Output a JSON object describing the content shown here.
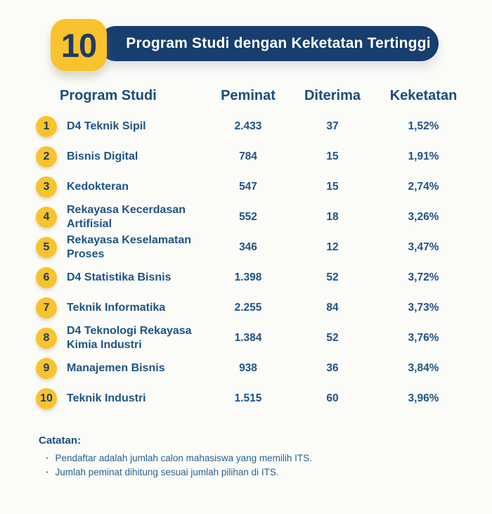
{
  "header": {
    "count": "10",
    "title": "Program Studi dengan Keketatan Tertinggi"
  },
  "table": {
    "columns": [
      "Program Studi",
      "Peminat",
      "Diterima",
      "Keketatan"
    ],
    "rows": [
      {
        "rank": "1",
        "program": "D4 Teknik Sipil",
        "peminat": "2.433",
        "diterima": "37",
        "keketatan": "1,52%"
      },
      {
        "rank": "2",
        "program": "Bisnis Digital",
        "peminat": "784",
        "diterima": "15",
        "keketatan": "1,91%"
      },
      {
        "rank": "3",
        "program": "Kedokteran",
        "peminat": "547",
        "diterima": "15",
        "keketatan": "2,74%"
      },
      {
        "rank": "4",
        "program": "Rekayasa Kecerdasan Artifisial",
        "peminat": "552",
        "diterima": "18",
        "keketatan": "3,26%"
      },
      {
        "rank": "5",
        "program": "Rekayasa Keselamatan Proses",
        "peminat": "346",
        "diterima": "12",
        "keketatan": "3,47%"
      },
      {
        "rank": "6",
        "program": "D4 Statistika Bisnis",
        "peminat": "1.398",
        "diterima": "52",
        "keketatan": "3,72%"
      },
      {
        "rank": "7",
        "program": "Teknik Informatika",
        "peminat": "2.255",
        "diterima": "84",
        "keketatan": "3,73%"
      },
      {
        "rank": "8",
        "program": "D4 Teknologi Rekayasa Kimia Industri",
        "peminat": "1.384",
        "diterima": "52",
        "keketatan": "3,76%"
      },
      {
        "rank": "9",
        "program": "Manajemen Bisnis",
        "peminat": "938",
        "diterima": "36",
        "keketatan": "3,84%"
      },
      {
        "rank": "10",
        "program": "Teknik Industri",
        "peminat": "1.515",
        "diterima": "60",
        "keketatan": "3,96%"
      }
    ]
  },
  "notes": {
    "title": "Catatan:",
    "bullet": "·",
    "items": [
      "Pendaftar adalah jumlah calon mahasiswa yang memilih ITS.",
      "Jumlah peminat dihitung sesuai jumlah pilihan di ITS."
    ]
  },
  "colors": {
    "accent_yellow": "#F8C32C",
    "navy_pill": "#173E6E",
    "text_blue": "#1E5486",
    "background": "#FBFBF8"
  },
  "chart_data": {
    "type": "table",
    "title": "10 Program Studi dengan Keketatan Tertinggi",
    "columns": [
      "Program Studi",
      "Peminat",
      "Diterima",
      "Keketatan"
    ],
    "rows": [
      [
        "D4 Teknik Sipil",
        2433,
        37,
        "1,52%"
      ],
      [
        "Bisnis Digital",
        784,
        15,
        "1,91%"
      ],
      [
        "Kedokteran",
        547,
        15,
        "2,74%"
      ],
      [
        "Rekayasa Kecerdasan Artifisial",
        552,
        18,
        "3,26%"
      ],
      [
        "Rekayasa Keselamatan Proses",
        346,
        12,
        "3,47%"
      ],
      [
        "D4 Statistika Bisnis",
        1398,
        52,
        "3,72%"
      ],
      [
        "Teknik Informatika",
        2255,
        84,
        "3,73%"
      ],
      [
        "D4 Teknologi Rekayasa Kimia Industri",
        1384,
        52,
        "3,76%"
      ],
      [
        "Manajemen Bisnis",
        938,
        36,
        "3,84%"
      ],
      [
        "Teknik Industri",
        1515,
        60,
        "3,96%"
      ]
    ]
  }
}
